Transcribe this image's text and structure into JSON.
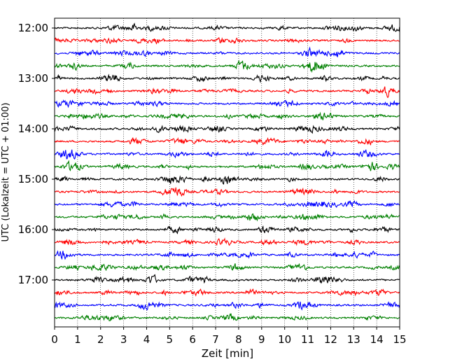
{
  "chart_data": {
    "type": "line",
    "title": "",
    "xlabel": "Zeit  [min]",
    "ylabel": "UTC (Lokalzeit = UTC + 01:00)",
    "xlim": [
      0,
      15
    ],
    "x_ticks": [
      "0",
      "1",
      "2",
      "3",
      "4",
      "5",
      "6",
      "7",
      "8",
      "9",
      "10",
      "11",
      "12",
      "13",
      "14",
      "15"
    ],
    "y_ticks": [
      "12:00",
      "13:00",
      "14:00",
      "15:00",
      "16:00",
      "17:00"
    ],
    "grid": "vertical dotted",
    "trace_interval_minutes": 15,
    "start_time": "12:00",
    "trace_count": 24,
    "trace_colors": [
      "#000000",
      "#ff0000",
      "#0000ff",
      "#008000"
    ]
  }
}
